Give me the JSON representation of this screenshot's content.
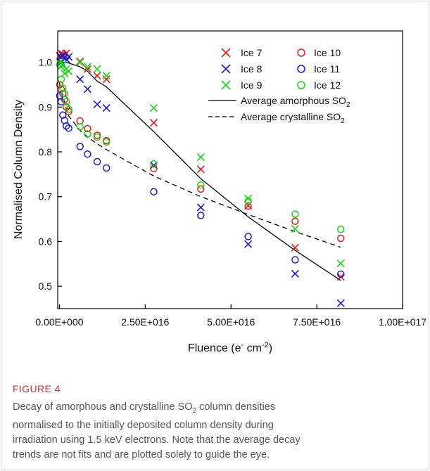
{
  "chart_data": {
    "type": "scatter",
    "xlabel": "Fluence (e⁻ cm⁻²)",
    "ylabel": "Normalised Column Density",
    "xlim": [
      -500000000000000.0,
      1e+17
    ],
    "ylim": [
      0.45,
      1.07
    ],
    "x_ticks": [
      0,
      2.5e+16,
      5e+16,
      7.5e+16,
      1e+17
    ],
    "x_tick_labels": [
      "0.00E+000",
      "2.50E+016",
      "5.00E+016",
      "7.50E+016",
      "1.00E+017"
    ],
    "y_ticks": [
      0.5,
      0.6,
      0.7,
      0.8,
      0.9,
      1.0
    ],
    "y_tick_labels": [
      "0.5",
      "0.6",
      "0.7",
      "0.8",
      "0.9",
      "1.0"
    ],
    "legend_position": "top-right",
    "series": [
      {
        "name": "Ice 7",
        "marker": "x",
        "color": "#e41a1c",
        "x": [
          100000000000000.0,
          500000000000000.0,
          1000000000000000.0,
          1500000000000000.0,
          2000000000000000.0,
          6000000000000000.0,
          8200000000000000.0,
          1.1e+16,
          1.37e+16,
          2.75e+16,
          4.12e+16,
          5.5e+16,
          6.87e+16,
          8.2e+16
        ],
        "y": [
          1.015,
          1.02,
          1.018,
          1.015,
          1.02,
          1.002,
          0.985,
          0.97,
          0.962,
          0.865,
          0.761,
          0.68,
          0.586,
          0.521
        ]
      },
      {
        "name": "Ice 8",
        "marker": "x",
        "color": "#1a1ad6",
        "x": [
          300000000000000.0,
          600000000000000.0,
          1000000000000000.0,
          1500000000000000.0,
          2200000000000000.0,
          2700000000000000.0,
          6000000000000000.0,
          8200000000000000.0,
          1.1e+16,
          1.37e+16,
          2.75e+16,
          4.12e+16,
          5.5e+16,
          6.87e+16,
          8.2e+16
        ],
        "y": [
          1.012,
          1.0,
          1.015,
          1.01,
          1.005,
          1.012,
          0.962,
          0.94,
          0.906,
          0.898,
          0.77,
          0.676,
          0.594,
          0.528,
          0.462
        ]
      },
      {
        "name": "Ice 9",
        "marker": "x",
        "color": "#17d617",
        "x": [
          100000000000000.0,
          500000000000000.0,
          1000000000000000.0,
          1500000000000000.0,
          2000000000000000.0,
          2700000000000000.0,
          6000000000000000.0,
          8200000000000000.0,
          1.1e+16,
          1.37e+16,
          2.75e+16,
          4.12e+16,
          5.5e+16,
          6.87e+16,
          8.2e+16
        ],
        "y": [
          1.0,
          0.99,
          0.995,
          0.975,
          0.985,
          0.98,
          1.0,
          0.99,
          0.985,
          0.97,
          0.898,
          0.788,
          0.696,
          0.628,
          0.551
        ]
      },
      {
        "name": "Ice 10",
        "marker": "o",
        "color": "#e41a1c",
        "x": [
          100000000000000.0,
          500000000000000.0,
          1000000000000000.0,
          1500000000000000.0,
          2000000000000000.0,
          2700000000000000.0,
          6000000000000000.0,
          8200000000000000.0,
          1.1e+16,
          1.37e+16,
          2.75e+16,
          4.12e+16,
          5.5e+16,
          6.87e+16,
          8.2e+16
        ],
        "y": [
          0.95,
          0.94,
          0.93,
          0.917,
          0.9,
          0.89,
          0.869,
          0.852,
          0.837,
          0.825,
          0.763,
          0.717,
          0.679,
          0.645,
          0.607
        ]
      },
      {
        "name": "Ice 11",
        "marker": "o",
        "color": "#1a1ad6",
        "x": [
          100000000000000.0,
          500000000000000.0,
          1000000000000000.0,
          1500000000000000.0,
          2000000000000000.0,
          2700000000000000.0,
          6000000000000000.0,
          8200000000000000.0,
          1.1e+16,
          1.37e+16,
          2.75e+16,
          4.12e+16,
          5.5e+16,
          6.87e+16,
          8.2e+16
        ],
        "y": [
          0.925,
          0.912,
          0.882,
          0.87,
          0.858,
          0.853,
          0.812,
          0.795,
          0.778,
          0.764,
          0.711,
          0.658,
          0.611,
          0.559,
          0.527
        ]
      },
      {
        "name": "Ice 12",
        "marker": "o",
        "color": "#17d617",
        "x": [
          100000000000000.0,
          500000000000000.0,
          1000000000000000.0,
          1500000000000000.0,
          2000000000000000.0,
          2700000000000000.0,
          6000000000000000.0,
          8200000000000000.0,
          1.1e+16,
          1.37e+16,
          2.75e+16,
          4.12e+16,
          5.5e+16,
          6.87e+16,
          8.2e+16
        ],
        "y": [
          0.995,
          0.962,
          0.942,
          0.93,
          0.912,
          0.895,
          0.856,
          0.84,
          0.833,
          0.822,
          0.773,
          0.726,
          0.69,
          0.661,
          0.627
        ]
      },
      {
        "name": "Average amorphous SO₂",
        "marker": "line",
        "color": "#000000",
        "dash": "solid",
        "x": [
          0,
          2000000000000000.0,
          6000000000000000.0,
          8200000000000000.0,
          1.1e+16,
          1.37e+16,
          2.75e+16,
          4.12e+16,
          5.5e+16,
          6.87e+16,
          8.2e+16
        ],
        "y": [
          1.0,
          1.0,
          0.99,
          0.98,
          0.958,
          0.945,
          0.845,
          0.74,
          0.655,
          0.58,
          0.513
        ]
      },
      {
        "name": "Average crystalline SO₂",
        "marker": "line",
        "color": "#000000",
        "dash": "dashed",
        "x": [
          0,
          1000000000000000.0,
          2000000000000000.0,
          2700000000000000.0,
          6000000000000000.0,
          8200000000000000.0,
          1.1e+16,
          1.37e+16,
          2.75e+16,
          4.12e+16,
          5.5e+16,
          6.87e+16,
          8.2e+16
        ],
        "y": [
          0.955,
          0.915,
          0.895,
          0.88,
          0.848,
          0.833,
          0.818,
          0.805,
          0.746,
          0.7,
          0.66,
          0.622,
          0.587
        ]
      }
    ]
  },
  "legend": {
    "ice7": "Ice 7",
    "ice8": "Ice 8",
    "ice9": "Ice 9",
    "ice10": "Ice 10",
    "ice11": "Ice 11",
    "ice12": "Ice 12",
    "amorphous_prefix": "Average amorphous SO",
    "amorphous_sub": "2",
    "crystalline_prefix": "Average crystalline SO",
    "crystalline_sub": "2"
  },
  "axes": {
    "ylabel": "Normalised Column Density",
    "xlabel_prefix": "Fluence (e",
    "xlabel_sup1": "-",
    "xlabel_mid": " cm",
    "xlabel_sup2": "-2",
    "xlabel_suffix": ")"
  },
  "figure": {
    "label": "FIGURE 4",
    "caption_line1_prefix": "Decay of amorphous and crystalline SO",
    "caption_line1_sub": "2",
    "caption_line1_suffix": " column densities",
    "caption_line2": "normalised to the initially deposited column density during",
    "caption_line3": "irradiation using 1.5 keV electrons. Note that the average decay",
    "caption_line4": "trends are not fits and are plotted solely to guide the eye."
  }
}
